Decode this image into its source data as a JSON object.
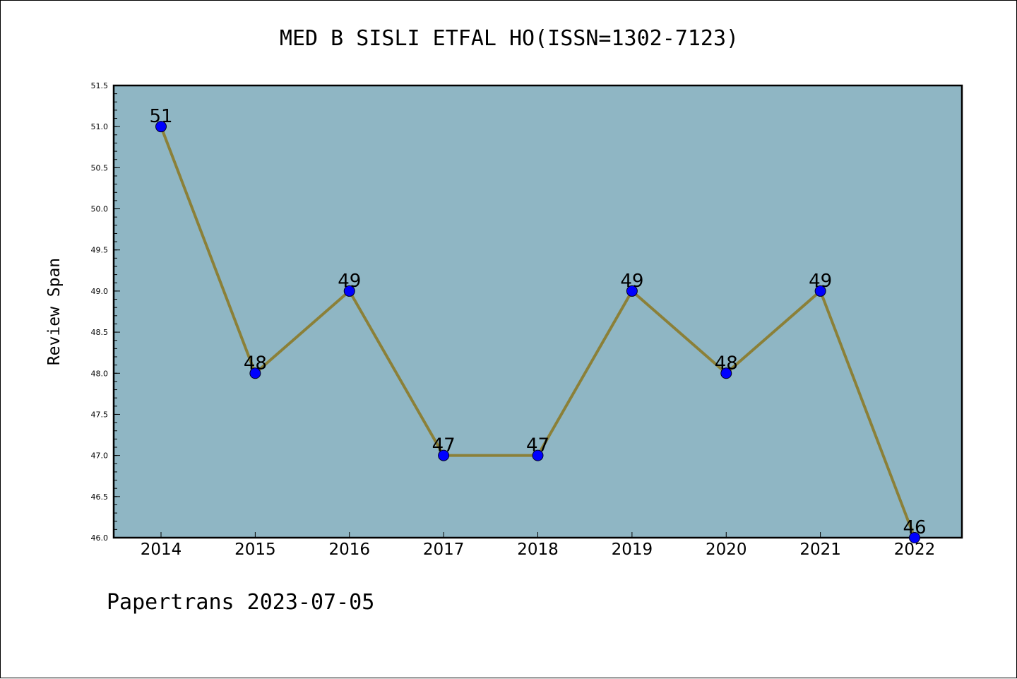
{
  "chart_data": {
    "type": "line",
    "title": "MED B SISLI ETFAL HO(ISSN=1302-7123)",
    "xlabel": "",
    "ylabel": "Review Span",
    "categories": [
      "2014",
      "2015",
      "2016",
      "2017",
      "2018",
      "2019",
      "2020",
      "2021",
      "2022"
    ],
    "series": [
      {
        "values": [
          51,
          48,
          49,
          47,
          47,
          49,
          48,
          49,
          46
        ]
      }
    ],
    "data_labels": [
      "51",
      "48",
      "49",
      "47",
      "47",
      "49",
      "48",
      "49",
      "46"
    ],
    "ylim": [
      46.0,
      51.5
    ],
    "yticks": [
      "46.0",
      "46.5",
      "47.0",
      "47.5",
      "48.0",
      "48.5",
      "49.0",
      "49.5",
      "50.0",
      "50.5",
      "51.0",
      "51.5"
    ],
    "grid": false,
    "legend": "none",
    "colors": {
      "plot_background": "#8fb6c4",
      "line": "#8b8038",
      "marker": "#0000ff"
    }
  },
  "footer": "Papertrans 2023-07-05"
}
